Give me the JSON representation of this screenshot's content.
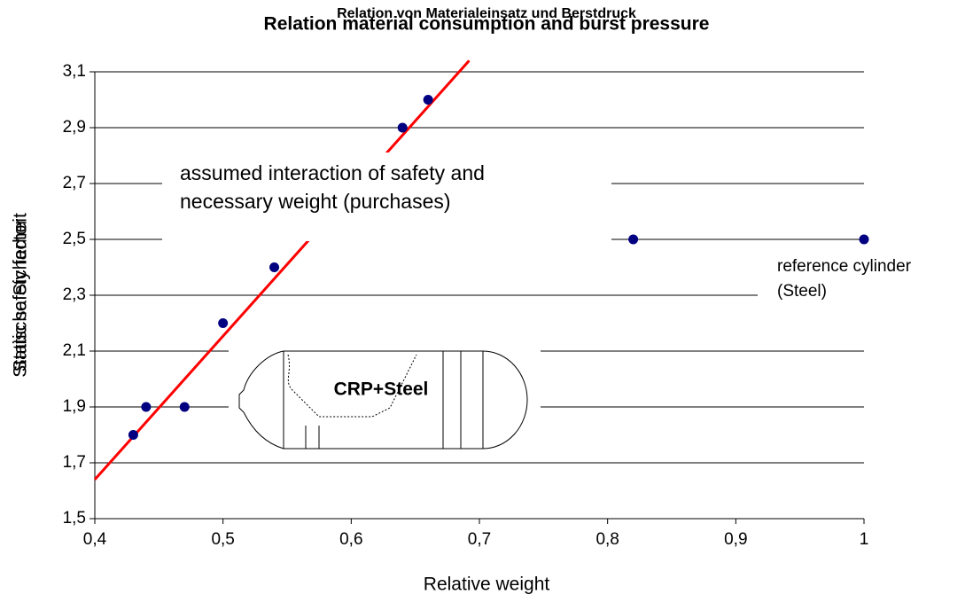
{
  "chart_data": {
    "type": "scatter",
    "titles": [
      "Relation von Materialeinsatz und Berstdruck",
      "Relation material consumption and burst pressure"
    ],
    "xlabel": "Relative weight",
    "ylabels": [
      "Statische Sicherheit",
      "Static safety factor"
    ],
    "xlim": [
      0.4,
      1
    ],
    "ylim": [
      1.5,
      3.1
    ],
    "xticks": [
      {
        "value": 0.4,
        "label": "0,4"
      },
      {
        "value": 0.5,
        "label": "0,5"
      },
      {
        "value": 0.6,
        "label": "0,6"
      },
      {
        "value": 0.7,
        "label": "0,7"
      },
      {
        "value": 0.8,
        "label": "0,8"
      },
      {
        "value": 0.9,
        "label": "0,9"
      },
      1
    ],
    "yticks": [
      {
        "value": 1.5,
        "label": "1,5"
      },
      {
        "value": 1.7,
        "label": "1,7"
      },
      {
        "value": 1.9,
        "label": "1,9"
      },
      {
        "value": 2.1,
        "label": "2,1"
      },
      {
        "value": 2.3,
        "label": "2,3"
      },
      {
        "value": 2.5,
        "label": "2,5"
      },
      {
        "value": 2.7,
        "label": "2,7"
      },
      {
        "value": 2.9,
        "label": "2,9"
      },
      {
        "value": 3.1,
        "label": "3,1"
      }
    ],
    "grid": true,
    "series": [
      {
        "color": "#000080",
        "x": [
          0.43,
          0.44,
          0.47,
          0.5,
          0.54,
          0.64,
          0.66,
          0.82,
          1
        ],
        "values": [
          1.8,
          1.9,
          1.9,
          2.2,
          2.4,
          2.9,
          3.0,
          2.5,
          2.5
        ]
      }
    ],
    "trendline": {
      "color": "#ff0000",
      "x": [
        0.4,
        0.692
      ],
      "values": [
        1.64,
        3.14
      ]
    },
    "annotations": [
      {
        "lines": [
          "assumed interaction of safety and",
          "necessary weight (purchases)"
        ]
      },
      {
        "lines": [
          "reference cylinder",
          "(Steel)"
        ]
      }
    ],
    "drawing_label": "CRP+Steel"
  }
}
